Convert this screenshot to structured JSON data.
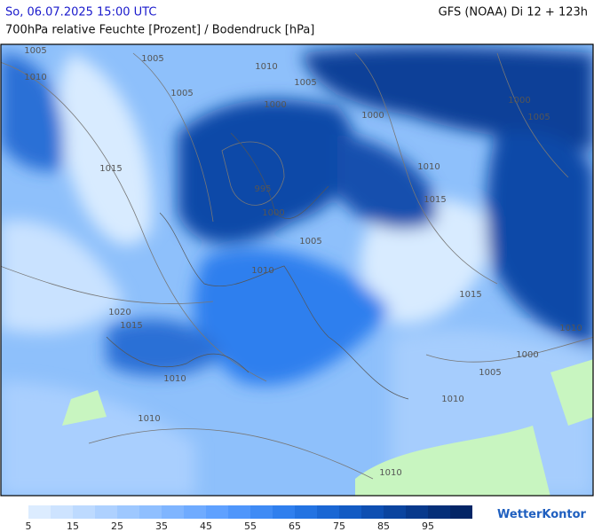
{
  "header": {
    "left": "So, 06.07.2025 15:00 UTC",
    "right": "GFS (NOAA) Di 12 + 123h",
    "subtitle": "700hPa relative Feuchte [Prozent] / Bodendruck [hPa]"
  },
  "isobar_labels": [
    "1005",
    "1010",
    "1005",
    "1010",
    "1005",
    "1005",
    "1000",
    "1000",
    "1000",
    "1005",
    "1015",
    "1010",
    "995",
    "1015",
    "1000",
    "1005",
    "1010",
    "1015",
    "1020",
    "1015",
    "1010",
    "1000",
    "1010",
    "1005",
    "1010",
    "1010",
    "1010"
  ],
  "legend": {
    "ticks": [
      5,
      15,
      25,
      35,
      45,
      55,
      65,
      75,
      85,
      95
    ],
    "colors": [
      "#dcecff",
      "#cde3ff",
      "#bddaff",
      "#aed1ff",
      "#9ec8ff",
      "#8fbfff",
      "#7fb5ff",
      "#6fabff",
      "#5fa1ff",
      "#4f96fb",
      "#3f8bf5",
      "#2f7fee",
      "#2373e2",
      "#1a67d4",
      "#135bc4",
      "#0e4fb2",
      "#0a449f",
      "#07398c",
      "#052f79",
      "#032566"
    ]
  },
  "logo": "WetterKontor"
}
